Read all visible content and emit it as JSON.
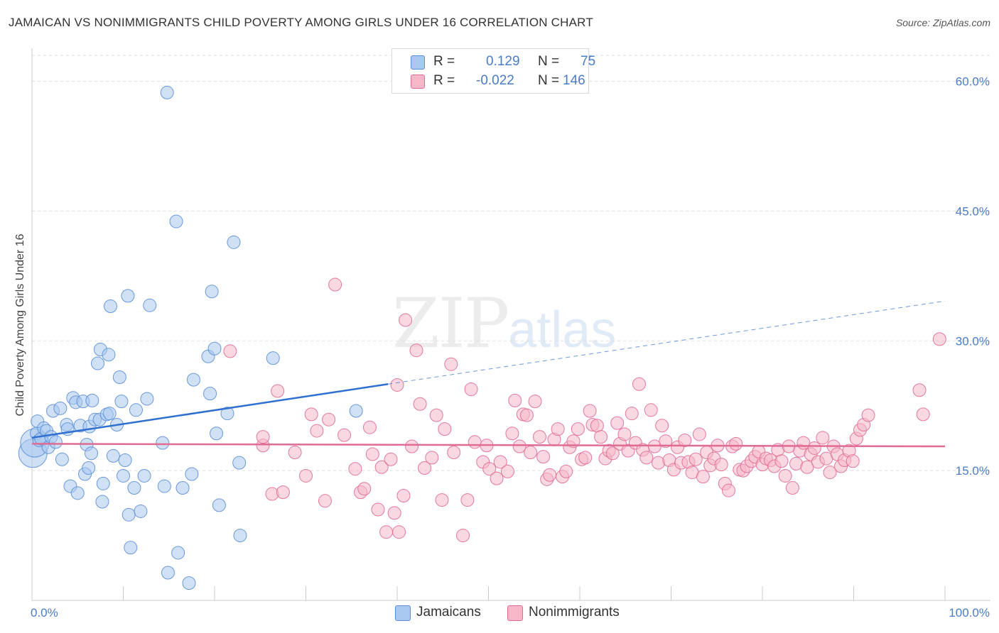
{
  "header": {
    "title": "JAMAICAN VS NONIMMIGRANTS CHILD POVERTY AMONG GIRLS UNDER 16 CORRELATION CHART",
    "source": "Source: ZipAtlas.com"
  },
  "watermark": {
    "zip": "ZIP",
    "atlas": "atlas"
  },
  "legend": {
    "rows": [
      {
        "r_label": "R =",
        "r_value": "0.129",
        "n_label": "N =",
        "n_value": "75",
        "color": "#a9c8ef"
      },
      {
        "r_label": "R =",
        "r_value": "-0.022",
        "n_label": "N =",
        "n_value": "146",
        "color": "#f6b8c9"
      }
    ]
  },
  "bottom_legend": [
    {
      "label": "Jamaicans",
      "color": "#a9c8ef"
    },
    {
      "label": "Nonimmigrants",
      "color": "#f6b8c9"
    }
  ],
  "chart_data": {
    "type": "scatter",
    "title": "JAMAICAN VS NONIMMIGRANTS CHILD POVERTY AMONG GIRLS UNDER 16 CORRELATION CHART",
    "ylabel": "Child Poverty Among Girls Under 16",
    "xlabel": "",
    "xlim": [
      0,
      100
    ],
    "ylim": [
      0,
      63
    ],
    "x_tick_labels": [
      "0.0%",
      "100.0%"
    ],
    "y_ticks": [
      15,
      30,
      45,
      60
    ],
    "y_tick_labels": [
      "15.0%",
      "30.0%",
      "45.0%",
      "60.0%"
    ],
    "grid": true,
    "legend_position": "top-center",
    "series": [
      {
        "name": "Jamaicans",
        "color": "#5b8fd6",
        "fill": "#a9c8ef",
        "trend": {
          "x": [
            0,
            39
          ],
          "y": [
            18.8,
            25.0
          ],
          "extended_to": [
            100,
            34.6
          ]
        },
        "points": [
          [
            0.1,
            17.0
          ],
          [
            0.3,
            18.2
          ],
          [
            0.5,
            19.3
          ],
          [
            0.6,
            20.7
          ],
          [
            0.8,
            18.5
          ],
          [
            1.0,
            18.7
          ],
          [
            1.3,
            19.9
          ],
          [
            1.6,
            19.6
          ],
          [
            1.8,
            17.7
          ],
          [
            2.1,
            18.9
          ],
          [
            2.3,
            21.9
          ],
          [
            2.6,
            18.3
          ],
          [
            3.1,
            22.2
          ],
          [
            3.3,
            16.3
          ],
          [
            3.8,
            20.3
          ],
          [
            3.9,
            19.8
          ],
          [
            4.2,
            13.2
          ],
          [
            4.5,
            23.4
          ],
          [
            4.8,
            22.9
          ],
          [
            5.0,
            12.4
          ],
          [
            5.3,
            20.2
          ],
          [
            5.6,
            23.0
          ],
          [
            5.8,
            14.6
          ],
          [
            6.0,
            18.0
          ],
          [
            6.2,
            15.3
          ],
          [
            6.3,
            20.1
          ],
          [
            6.5,
            17.0
          ],
          [
            6.6,
            23.1
          ],
          [
            6.9,
            20.9
          ],
          [
            7.2,
            27.4
          ],
          [
            7.4,
            20.9
          ],
          [
            7.5,
            29.0
          ],
          [
            7.7,
            11.4
          ],
          [
            7.8,
            13.5
          ],
          [
            8.2,
            21.5
          ],
          [
            8.4,
            28.4
          ],
          [
            8.5,
            21.6
          ],
          [
            8.6,
            34.0
          ],
          [
            8.9,
            16.7
          ],
          [
            9.3,
            20.3
          ],
          [
            9.6,
            25.8
          ],
          [
            9.8,
            23.0
          ],
          [
            10.0,
            14.4
          ],
          [
            10.2,
            16.2
          ],
          [
            10.5,
            35.2
          ],
          [
            10.6,
            9.9
          ],
          [
            10.8,
            6.1
          ],
          [
            11.2,
            13.0
          ],
          [
            11.4,
            22.0
          ],
          [
            11.9,
            10.3
          ],
          [
            12.3,
            14.4
          ],
          [
            12.6,
            23.3
          ],
          [
            12.9,
            34.1
          ],
          [
            14.3,
            18.2
          ],
          [
            14.5,
            13.2
          ],
          [
            14.8,
            58.7
          ],
          [
            14.9,
            3.2
          ],
          [
            15.8,
            43.8
          ],
          [
            16.5,
            13.0
          ],
          [
            17.2,
            2.0
          ],
          [
            17.5,
            14.6
          ],
          [
            17.7,
            25.5
          ],
          [
            19.3,
            28.2
          ],
          [
            19.5,
            23.9
          ],
          [
            19.7,
            35.7
          ],
          [
            20.0,
            29.1
          ],
          [
            20.2,
            19.3
          ],
          [
            20.5,
            11.0
          ],
          [
            21.4,
            21.6
          ],
          [
            22.1,
            41.4
          ],
          [
            22.7,
            15.9
          ],
          [
            22.8,
            7.5
          ],
          [
            26.4,
            28.0
          ],
          [
            35.5,
            21.9
          ],
          [
            16.0,
            5.5
          ]
        ]
      },
      {
        "name": "Nonimmigrants",
        "color": "#e06c93",
        "fill": "#f6b8c9",
        "trend": {
          "x": [
            0,
            100
          ],
          "y": [
            18.1,
            17.8
          ]
        },
        "points": [
          [
            21.7,
            28.8
          ],
          [
            25.3,
            17.9
          ],
          [
            25.3,
            18.9
          ],
          [
            26.3,
            12.3
          ],
          [
            26.9,
            24.2
          ],
          [
            27.5,
            12.5
          ],
          [
            28.8,
            17.1
          ],
          [
            30.0,
            14.4
          ],
          [
            30.6,
            21.5
          ],
          [
            31.2,
            19.6
          ],
          [
            32.1,
            11.5
          ],
          [
            32.5,
            20.9
          ],
          [
            33.2,
            36.5
          ],
          [
            34.2,
            19.1
          ],
          [
            35.4,
            15.2
          ],
          [
            36.0,
            12.5
          ],
          [
            36.4,
            12.9
          ],
          [
            37.0,
            20.0
          ],
          [
            37.3,
            16.9
          ],
          [
            37.9,
            10.5
          ],
          [
            38.3,
            15.4
          ],
          [
            38.8,
            7.9
          ],
          [
            39.3,
            16.3
          ],
          [
            39.7,
            10.1
          ],
          [
            40.0,
            24.9
          ],
          [
            40.2,
            7.9
          ],
          [
            40.7,
            12.1
          ],
          [
            40.9,
            32.4
          ],
          [
            41.6,
            17.8
          ],
          [
            42.1,
            28.9
          ],
          [
            42.5,
            22.7
          ],
          [
            43.0,
            15.3
          ],
          [
            43.8,
            16.5
          ],
          [
            44.3,
            21.4
          ],
          [
            44.9,
            11.6
          ],
          [
            45.2,
            19.8
          ],
          [
            45.9,
            27.3
          ],
          [
            46.2,
            17.1
          ],
          [
            47.2,
            7.5
          ],
          [
            47.7,
            11.6
          ],
          [
            48.1,
            24.4
          ],
          [
            48.5,
            18.3
          ],
          [
            49.4,
            16.0
          ],
          [
            49.8,
            17.9
          ],
          [
            50.1,
            15.2
          ],
          [
            50.9,
            14.1
          ],
          [
            51.3,
            16.0
          ],
          [
            52.1,
            14.9
          ],
          [
            52.6,
            19.3
          ],
          [
            52.9,
            23.1
          ],
          [
            53.4,
            17.8
          ],
          [
            53.8,
            21.5
          ],
          [
            54.2,
            21.4
          ],
          [
            54.6,
            17.1
          ],
          [
            55.1,
            23.0
          ],
          [
            55.6,
            18.9
          ],
          [
            56.0,
            16.6
          ],
          [
            56.4,
            14.0
          ],
          [
            56.7,
            14.5
          ],
          [
            57.2,
            18.6
          ],
          [
            57.6,
            19.8
          ],
          [
            58.1,
            14.3
          ],
          [
            58.5,
            14.9
          ],
          [
            58.9,
            17.7
          ],
          [
            59.3,
            18.4
          ],
          [
            59.8,
            19.8
          ],
          [
            60.2,
            16.3
          ],
          [
            60.6,
            16.5
          ],
          [
            61.1,
            21.9
          ],
          [
            61.4,
            20.3
          ],
          [
            61.9,
            20.2
          ],
          [
            62.3,
            18.9
          ],
          [
            62.8,
            16.4
          ],
          [
            63.2,
            17.3
          ],
          [
            63.6,
            17.0
          ],
          [
            64.1,
            20.5
          ],
          [
            64.4,
            18.1
          ],
          [
            64.9,
            19.2
          ],
          [
            65.3,
            17.3
          ],
          [
            65.7,
            21.6
          ],
          [
            66.1,
            18.2
          ],
          [
            66.5,
            25.0
          ],
          [
            66.9,
            17.4
          ],
          [
            67.3,
            16.5
          ],
          [
            67.8,
            22.0
          ],
          [
            68.2,
            17.8
          ],
          [
            68.6,
            15.9
          ],
          [
            69.0,
            20.2
          ],
          [
            69.4,
            18.4
          ],
          [
            69.8,
            16.2
          ],
          [
            70.3,
            15.1
          ],
          [
            70.7,
            17.7
          ],
          [
            71.1,
            15.9
          ],
          [
            71.5,
            18.5
          ],
          [
            71.9,
            16.0
          ],
          [
            72.3,
            14.8
          ],
          [
            72.7,
            16.3
          ],
          [
            73.1,
            19.2
          ],
          [
            73.5,
            14.3
          ],
          [
            73.9,
            17.1
          ],
          [
            74.3,
            15.6
          ],
          [
            74.7,
            16.4
          ],
          [
            75.1,
            17.9
          ],
          [
            75.5,
            15.7
          ],
          [
            75.9,
            13.5
          ],
          [
            76.3,
            12.7
          ],
          [
            76.7,
            17.8
          ],
          [
            77.1,
            18.1
          ],
          [
            77.5,
            15.1
          ],
          [
            77.9,
            15.0
          ],
          [
            78.3,
            15.5
          ],
          [
            78.8,
            16.1
          ],
          [
            79.2,
            16.6
          ],
          [
            79.6,
            17.2
          ],
          [
            80.0,
            15.7
          ],
          [
            80.4,
            16.4
          ],
          [
            80.9,
            16.2
          ],
          [
            81.3,
            15.5
          ],
          [
            81.7,
            17.4
          ],
          [
            82.1,
            16.1
          ],
          [
            82.5,
            14.4
          ],
          [
            82.9,
            17.8
          ],
          [
            83.3,
            13.0
          ],
          [
            83.7,
            15.8
          ],
          [
            84.1,
            17.3
          ],
          [
            84.5,
            18.2
          ],
          [
            84.9,
            15.4
          ],
          [
            85.3,
            16.9
          ],
          [
            85.7,
            17.6
          ],
          [
            86.1,
            16.0
          ],
          [
            86.6,
            18.8
          ],
          [
            87.0,
            16.4
          ],
          [
            87.4,
            14.8
          ],
          [
            87.8,
            17.8
          ],
          [
            88.2,
            16.9
          ],
          [
            88.6,
            15.5
          ],
          [
            89.0,
            16.2
          ],
          [
            89.5,
            17.3
          ],
          [
            89.9,
            16.1
          ],
          [
            90.3,
            18.7
          ],
          [
            90.7,
            19.7
          ],
          [
            91.1,
            20.3
          ],
          [
            91.6,
            21.4
          ],
          [
            97.6,
            21.5
          ],
          [
            99.4,
            30.2
          ],
          [
            97.2,
            24.3
          ]
        ]
      }
    ]
  }
}
